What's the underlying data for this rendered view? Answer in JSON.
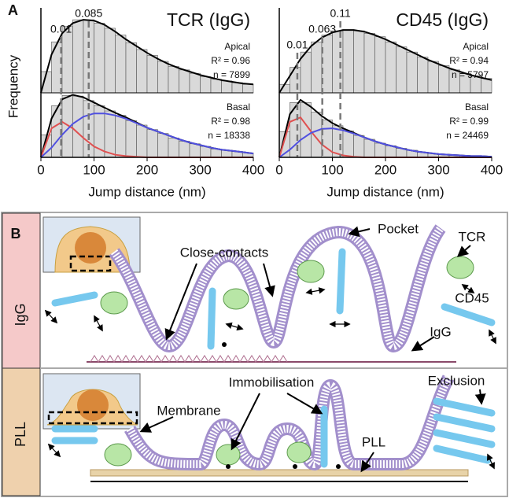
{
  "panel_a": {
    "label": "A"
  },
  "chart_data": [
    {
      "type": "histogram",
      "title": "TCR (IgG)",
      "xlabel": "Jump distance (nm)",
      "ylabel": "Frequency",
      "xlim": [
        0,
        400
      ],
      "xticks": [
        0,
        100,
        200,
        300,
        400
      ],
      "bins": [
        0,
        20,
        40,
        60,
        80,
        100,
        120,
        140,
        160,
        180,
        200,
        220,
        240,
        260,
        280,
        300,
        320,
        340,
        360,
        380,
        400
      ],
      "curve_x": [
        0,
        20,
        40,
        60,
        80,
        100,
        120,
        140,
        160,
        180,
        200,
        220,
        240,
        260,
        280,
        300,
        320,
        340,
        360,
        380,
        400
      ],
      "markers": [
        {
          "x": 38,
          "label": "0.01"
        },
        {
          "x": 90,
          "label": "0.085"
        }
      ],
      "panels": [
        {
          "name": "Apical",
          "r2": "R² = 0.96",
          "n": "n = 7899",
          "ylim": [
            0,
            1
          ],
          "color": "#d9d9d9",
          "counts": [
            0.25,
            0.6,
            0.78,
            0.86,
            0.86,
            0.82,
            0.76,
            0.68,
            0.59,
            0.51,
            0.44,
            0.37,
            0.31,
            0.27,
            0.23,
            0.19,
            0.16,
            0.14,
            0.12,
            0.1
          ],
          "series": [
            {
              "color": "#000000",
              "values": [
                0,
                0.45,
                0.7,
                0.82,
                0.86,
                0.85,
                0.8,
                0.72,
                0.63,
                0.55,
                0.47,
                0.4,
                0.34,
                0.29,
                0.25,
                0.21,
                0.18,
                0.15,
                0.13,
                0.11,
                0.1
              ]
            }
          ]
        },
        {
          "name": "Basal",
          "r2": "R² = 0.98",
          "n": "n = 18338",
          "ylim": [
            0,
            1
          ],
          "color": "#d9d9d9",
          "counts": [
            0.35,
            0.8,
            0.96,
            0.95,
            0.88,
            0.8,
            0.72,
            0.65,
            0.57,
            0.5,
            0.43,
            0.37,
            0.3,
            0.25,
            0.21,
            0.17,
            0.13,
            0.11,
            0.09,
            0.07
          ],
          "series": [
            {
              "color": "#000000",
              "values": [
                0,
                0.6,
                0.9,
                0.97,
                0.93,
                0.85,
                0.77,
                0.69,
                0.62,
                0.54,
                0.46,
                0.4,
                0.34,
                0.28,
                0.23,
                0.19,
                0.15,
                0.12,
                0.1,
                0.08,
                0.06
              ]
            },
            {
              "color": "#e05050",
              "values": [
                0,
                0.45,
                0.55,
                0.45,
                0.3,
                0.17,
                0.09,
                0.04,
                0.02,
                0.01,
                0,
                0,
                0,
                0,
                0,
                0,
                0,
                0,
                0,
                0,
                0
              ]
            },
            {
              "color": "#5050e0",
              "values": [
                0,
                0.15,
                0.35,
                0.52,
                0.63,
                0.68,
                0.68,
                0.65,
                0.6,
                0.53,
                0.46,
                0.4,
                0.34,
                0.28,
                0.23,
                0.19,
                0.15,
                0.12,
                0.1,
                0.08,
                0.06
              ]
            }
          ]
        }
      ]
    },
    {
      "type": "histogram",
      "title": "CD45 (IgG)",
      "xlabel": "Jump distance (nm)",
      "xlim": [
        0,
        400
      ],
      "xticks": [
        0,
        100,
        200,
        300,
        400
      ],
      "bins": [
        0,
        20,
        40,
        60,
        80,
        100,
        120,
        140,
        160,
        180,
        200,
        220,
        240,
        260,
        280,
        300,
        320,
        340,
        360,
        380,
        400
      ],
      "curve_x": [
        0,
        20,
        40,
        60,
        80,
        100,
        120,
        140,
        160,
        180,
        200,
        220,
        240,
        260,
        280,
        300,
        320,
        340,
        360,
        380,
        400
      ],
      "markers": [
        {
          "x": 34,
          "label": "0.01"
        },
        {
          "x": 81,
          "label": "0.063"
        },
        {
          "x": 115,
          "label": "0.11"
        }
      ],
      "panels": [
        {
          "name": "Apical",
          "r2": "R² = 0.94",
          "n": "n = 5797",
          "ylim": [
            0,
            1
          ],
          "color": "#d9d9d9",
          "counts": [
            0.1,
            0.3,
            0.48,
            0.6,
            0.68,
            0.73,
            0.74,
            0.73,
            0.7,
            0.66,
            0.6,
            0.54,
            0.48,
            0.42,
            0.37,
            0.32,
            0.27,
            0.23,
            0.2,
            0.17
          ],
          "series": [
            {
              "color": "#000000",
              "values": [
                0,
                0.2,
                0.4,
                0.55,
                0.65,
                0.71,
                0.74,
                0.74,
                0.72,
                0.68,
                0.63,
                0.57,
                0.51,
                0.45,
                0.39,
                0.34,
                0.29,
                0.25,
                0.21,
                0.18,
                0.15
              ]
            }
          ]
        },
        {
          "name": "Basal",
          "r2": "R² = 0.99",
          "n": "n = 24469",
          "ylim": [
            0,
            1
          ],
          "color": "#d9d9d9",
          "counts": [
            0.4,
            0.85,
            0.85,
            0.7,
            0.58,
            0.49,
            0.41,
            0.34,
            0.28,
            0.22,
            0.18,
            0.14,
            0.11,
            0.08,
            0.06,
            0.05,
            0.04,
            0.03,
            0.02,
            0.02
          ],
          "series": [
            {
              "color": "#000000",
              "values": [
                0,
                0.67,
                0.89,
                0.78,
                0.64,
                0.53,
                0.45,
                0.38,
                0.31,
                0.25,
                0.2,
                0.16,
                0.12,
                0.09,
                0.07,
                0.05,
                0.04,
                0.03,
                0.02,
                0.02,
                0.01
              ]
            },
            {
              "color": "#e05050",
              "values": [
                0,
                0.55,
                0.62,
                0.4,
                0.2,
                0.08,
                0.03,
                0.01,
                0,
                0,
                0,
                0,
                0,
                0,
                0,
                0,
                0,
                0,
                0,
                0,
                0
              ]
            },
            {
              "color": "#5050e0",
              "values": [
                0,
                0.12,
                0.27,
                0.38,
                0.44,
                0.45,
                0.42,
                0.37,
                0.31,
                0.25,
                0.2,
                0.16,
                0.12,
                0.09,
                0.07,
                0.05,
                0.04,
                0.03,
                0.02,
                0.02,
                0.01
              ]
            }
          ]
        }
      ]
    }
  ],
  "panel_b": {
    "label": "B",
    "rows": [
      {
        "label": "IgG",
        "annotations": [
          "Pocket",
          "Close-contacts",
          "TCR",
          "CD45",
          "IgG"
        ]
      },
      {
        "label": "PLL",
        "annotations": [
          "Immobilisation",
          "Membrane",
          "Exclusion",
          "PLL"
        ]
      }
    ]
  }
}
